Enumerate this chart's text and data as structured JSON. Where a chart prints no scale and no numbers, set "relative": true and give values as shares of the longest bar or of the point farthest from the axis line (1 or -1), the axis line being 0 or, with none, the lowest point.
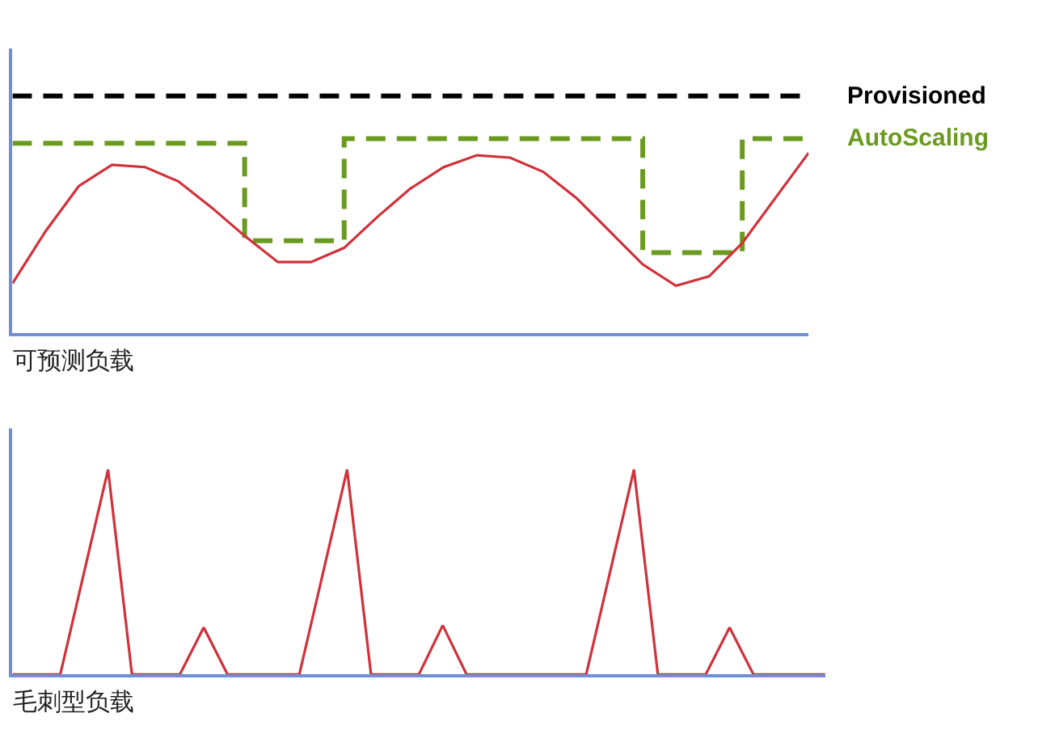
{
  "chart_data": [
    {
      "type": "line",
      "relative": true,
      "xlabel": "可预测负载",
      "tick_labels": false,
      "marker": "none",
      "categories": [
        null,
        null,
        null,
        null,
        null,
        null,
        null,
        null,
        null,
        null,
        null,
        null,
        null,
        null,
        null,
        null,
        null,
        null,
        null,
        null,
        null,
        null,
        null,
        null,
        null
      ],
      "series": [
        {
          "name": "Provisioned",
          "color": "#000000",
          "line_style": "dashed",
          "values": [
            1,
            1,
            1,
            1,
            1,
            1,
            1,
            1,
            1,
            1,
            1,
            1,
            1,
            1,
            1,
            1,
            1,
            1,
            1,
            1,
            1,
            1,
            1,
            1,
            1
          ]
        },
        {
          "name": "AutoScaling",
          "type": "step",
          "color": "#6a9a1f",
          "line_style": "dashed",
          "values": [
            0.8,
            0.8,
            0.8,
            0.8,
            0.8,
            0.8,
            0.8,
            0.39,
            0.39,
            0.39,
            0.82,
            0.82,
            0.82,
            0.82,
            0.82,
            0.82,
            0.82,
            0.82,
            0.82,
            0.34,
            0.34,
            0.34,
            0.82,
            0.82,
            0.82
          ]
        },
        {
          "color": "#d0313a",
          "line_style": "solid",
          "values": [
            0.21,
            0.43,
            0.62,
            0.71,
            0.7,
            0.64,
            0.53,
            0.41,
            0.3,
            0.3,
            0.36,
            0.49,
            0.61,
            0.7,
            0.75,
            0.74,
            0.68,
            0.57,
            0.43,
            0.29,
            0.2,
            0.24,
            0.38,
            0.57,
            0.76
          ]
        }
      ]
    },
    {
      "type": "line",
      "relative": true,
      "xlabel": "毛刺型负载",
      "tick_labels": false,
      "marker": "none",
      "categories": [
        null,
        null,
        null,
        null,
        null,
        null,
        null,
        null,
        null,
        null,
        null,
        null,
        null,
        null,
        null,
        null,
        null,
        null,
        null,
        null,
        null,
        null,
        null,
        null,
        null,
        null,
        null,
        null,
        null,
        null,
        null,
        null,
        null,
        null,
        null
      ],
      "series": [
        {
          "color": "#d0313a",
          "line_style": "solid",
          "values": [
            0,
            0,
            0,
            0.5,
            1,
            0,
            0,
            0,
            0.23,
            0,
            0,
            0,
            0,
            0.5,
            1,
            0,
            0,
            0,
            0.24,
            0,
            0,
            0,
            0,
            0,
            0,
            0.5,
            1,
            0,
            0,
            0,
            0.23,
            0,
            0,
            0,
            0
          ]
        }
      ]
    }
  ]
}
